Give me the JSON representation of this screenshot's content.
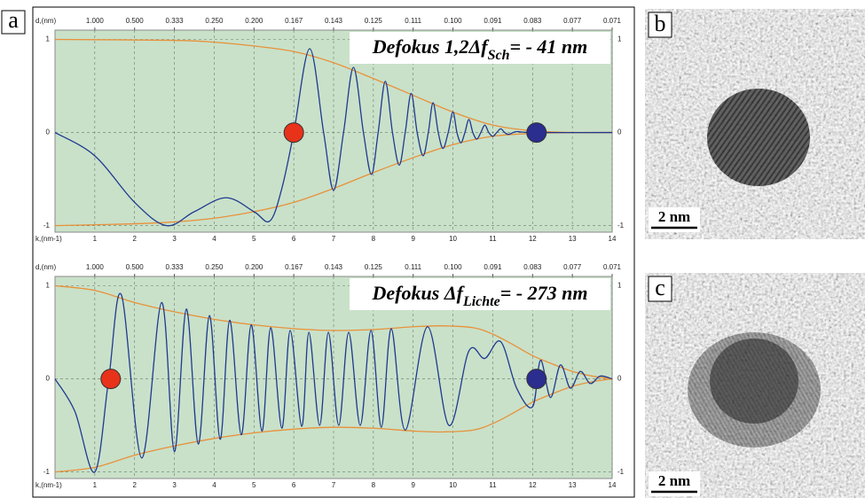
{
  "panel_label": "a",
  "chart_data": [
    {
      "type": "line",
      "title_parts": [
        "Defokus 1,2Δf",
        "Sch",
        "= - 41 nm"
      ],
      "x_label": "k,(nm-1)",
      "top_label": "d,(nm)",
      "xlim": [
        0,
        14
      ],
      "ylim": [
        -1.07,
        1.1
      ],
      "xticks": [
        1,
        2,
        3,
        4,
        5,
        6,
        7,
        8,
        9,
        10,
        11,
        12,
        13,
        14
      ],
      "top_ticks": [
        {
          "value": 1,
          "label": "1.000"
        },
        {
          "value": 2,
          "label": "0.500"
        },
        {
          "value": 3,
          "label": "0.333"
        },
        {
          "value": 4,
          "label": "0.250"
        },
        {
          "value": 5,
          "label": "0.200"
        },
        {
          "value": 6,
          "label": "0.167"
        },
        {
          "value": 7,
          "label": "0.143"
        },
        {
          "value": 8,
          "label": "0.125"
        },
        {
          "value": 9,
          "label": "0.111"
        },
        {
          "value": 10,
          "label": "0.100"
        },
        {
          "value": 11,
          "label": "0.091"
        },
        {
          "value": 12,
          "label": "0.083"
        },
        {
          "value": 13,
          "label": "0.077"
        },
        {
          "value": 14,
          "label": "0.071"
        }
      ],
      "yticks": [
        -1,
        0,
        1
      ],
      "grid": true,
      "background": "#c9e1c9",
      "series": [
        {
          "color": "#e8913a",
          "x": [
            0,
            3,
            4,
            5,
            6,
            7,
            8,
            9,
            10,
            11,
            12,
            13,
            14
          ],
          "values": [
            1,
            0.99,
            0.97,
            0.93,
            0.87,
            0.75,
            0.58,
            0.4,
            0.22,
            0.08,
            0.02,
            0,
            0
          ]
        },
        {
          "color": "#e8913a",
          "x": [
            0,
            2,
            3,
            4,
            5,
            6,
            7,
            8,
            9,
            10,
            11,
            12,
            13,
            14
          ],
          "values": [
            -1,
            -0.98,
            -0.96,
            -0.92,
            -0.85,
            -0.75,
            -0.6,
            -0.43,
            -0.27,
            -0.13,
            -0.04,
            -0.01,
            0,
            0
          ]
        },
        {
          "color": "#1f3a8f",
          "x": [
            0,
            1,
            2,
            2.8,
            3.5,
            4.3,
            5,
            5.4,
            5.7,
            6,
            6.4,
            6.75,
            7,
            7.25,
            7.5,
            7.75,
            7.95,
            8.12,
            8.3,
            8.48,
            8.65,
            8.8,
            8.95,
            9.1,
            9.25,
            9.38,
            9.5,
            9.63,
            9.75,
            9.88,
            10,
            10.1,
            10.2,
            10.3,
            10.4,
            10.5,
            10.6,
            10.7,
            10.8,
            10.9,
            11,
            11.1,
            11.2,
            11.3,
            11.4,
            11.6,
            12,
            14
          ],
          "values": [
            0,
            -0.25,
            -0.75,
            -1,
            -0.85,
            -0.7,
            -0.85,
            -0.95,
            -0.6,
            0,
            0.9,
            0,
            -0.62,
            0,
            0.7,
            0,
            -0.45,
            0,
            0.55,
            0,
            -0.35,
            0,
            0.42,
            0,
            -0.25,
            0,
            0.32,
            0,
            -0.17,
            0,
            0.22,
            0,
            -0.11,
            0,
            0.14,
            0,
            -0.07,
            0,
            0.08,
            0,
            -0.04,
            0,
            0.04,
            0,
            -0.02,
            0.01,
            0,
            0
          ]
        },
        {
          "marker": true,
          "color": "#e8321a",
          "x": [
            6
          ],
          "values": [
            0
          ]
        },
        {
          "marker": true,
          "color": "#2b2d8f",
          "x": [
            12.1
          ],
          "values": [
            0
          ]
        }
      ]
    },
    {
      "type": "line",
      "title_parts": [
        "Defokus Δf",
        "Lichte",
        "= - 273 nm"
      ],
      "x_label": "k,(nm-1)",
      "top_label": "d,(nm)",
      "xlim": [
        0,
        14
      ],
      "ylim": [
        -1.07,
        1.1
      ],
      "xticks": [
        1,
        2,
        3,
        4,
        5,
        6,
        7,
        8,
        9,
        10,
        11,
        12,
        13,
        14
      ],
      "top_ticks": [
        {
          "value": 1,
          "label": "1.000"
        },
        {
          "value": 2,
          "label": "0.500"
        },
        {
          "value": 3,
          "label": "0.333"
        },
        {
          "value": 4,
          "label": "0.250"
        },
        {
          "value": 5,
          "label": "0.200"
        },
        {
          "value": 6,
          "label": "0.167"
        },
        {
          "value": 7,
          "label": "0.143"
        },
        {
          "value": 8,
          "label": "0.125"
        },
        {
          "value": 9,
          "label": "0.111"
        },
        {
          "value": 10,
          "label": "0.100"
        },
        {
          "value": 11,
          "label": "0.091"
        },
        {
          "value": 12,
          "label": "0.083"
        },
        {
          "value": 13,
          "label": "0.077"
        },
        {
          "value": 14,
          "label": "0.071"
        }
      ],
      "yticks": [
        -1,
        0,
        1
      ],
      "grid": true,
      "background": "#c9e1c9",
      "series": [
        {
          "color": "#e8913a",
          "x": [
            0,
            1,
            2,
            3,
            4,
            5,
            6,
            7,
            8,
            9,
            9.7,
            10.5,
            11,
            11.5,
            12,
            12.5,
            13,
            13.5,
            14
          ],
          "values": [
            1,
            0.95,
            0.82,
            0.72,
            0.64,
            0.58,
            0.54,
            0.52,
            0.53,
            0.56,
            0.57,
            0.55,
            0.48,
            0.37,
            0.25,
            0.16,
            0.08,
            0.03,
            0
          ]
        },
        {
          "color": "#e8913a",
          "x": [
            0,
            1,
            2,
            3,
            4,
            5,
            6,
            7,
            8,
            9,
            9.7,
            10.5,
            11,
            11.5,
            12,
            12.5,
            13,
            13.5,
            14
          ],
          "values": [
            -1,
            -0.95,
            -0.82,
            -0.72,
            -0.64,
            -0.58,
            -0.54,
            -0.52,
            -0.53,
            -0.56,
            -0.57,
            -0.55,
            -0.48,
            -0.37,
            -0.25,
            -0.16,
            -0.08,
            -0.03,
            0
          ]
        },
        {
          "color": "#1f3a8f",
          "x": [
            0,
            0.5,
            1,
            1.35,
            1.67,
            2.18,
            2.68,
            3,
            3.3,
            3.6,
            3.88,
            4.15,
            4.39,
            4.68,
            4.93,
            5.2,
            5.42,
            5.7,
            5.91,
            6.2,
            6.38,
            6.65,
            6.87,
            7.13,
            7.38,
            7.67,
            7.94,
            8.2,
            8.45,
            8.8,
            9.36,
            9.9,
            10.4,
            10.8,
            11.2,
            11.6,
            12,
            12.2,
            12.45,
            12.7,
            12.95,
            13.2,
            13.45,
            13.7,
            14
          ],
          "values": [
            0,
            -0.35,
            -1,
            0,
            0.9,
            -0.85,
            0.82,
            -0.78,
            0.75,
            -0.7,
            0.68,
            -0.65,
            0.63,
            -0.6,
            0.58,
            -0.56,
            0.55,
            -0.53,
            0.52,
            -0.51,
            0.5,
            -0.5,
            0.5,
            -0.5,
            0.5,
            -0.5,
            0.52,
            -0.52,
            0.54,
            -0.55,
            0.56,
            -0.5,
            0.3,
            0.22,
            0.4,
            -0.1,
            -0.3,
            0.2,
            -0.2,
            0.15,
            -0.1,
            0.08,
            -0.05,
            0.03,
            0
          ]
        },
        {
          "marker": true,
          "color": "#e8321a",
          "x": [
            1.4
          ],
          "values": [
            0
          ]
        },
        {
          "marker": true,
          "color": "#2b2d8f",
          "x": [
            12.1
          ],
          "values": [
            0
          ]
        }
      ]
    }
  ],
  "images": [
    {
      "label": "b",
      "scale": "2 nm"
    },
    {
      "label": "c",
      "scale": "2 nm"
    }
  ]
}
